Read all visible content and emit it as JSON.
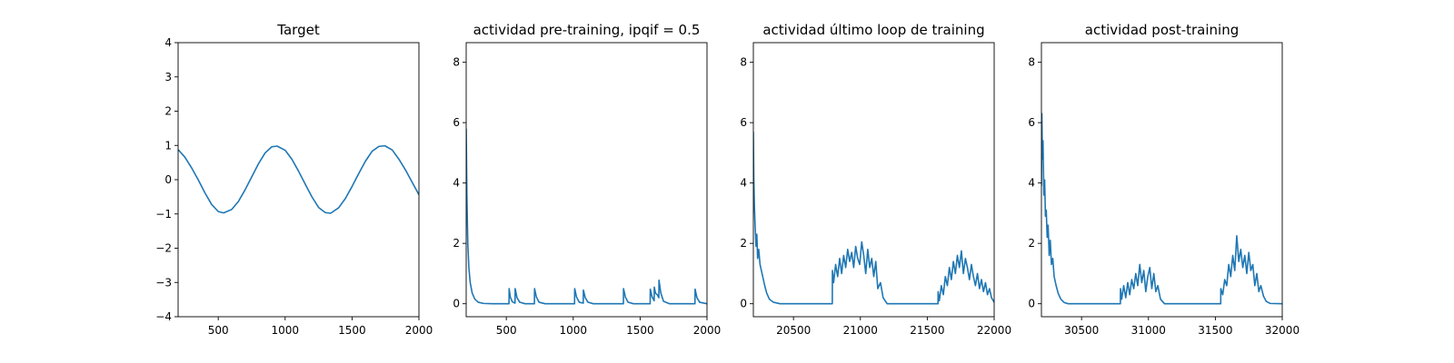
{
  "colors": {
    "series": "#1f77b4",
    "axes": "#000000",
    "background": "#ffffff"
  },
  "chart_data": [
    {
      "type": "line",
      "title": "Target",
      "xlim": [
        200,
        2000
      ],
      "ylim": [
        -4,
        4
      ],
      "xticks": [
        500,
        1000,
        1500,
        2000
      ],
      "yticks": [
        -4,
        -3,
        -2,
        -1,
        0,
        1,
        2,
        3,
        4
      ],
      "grid": false,
      "legend": "none",
      "series": [
        {
          "x": [
            200,
            250,
            300,
            350,
            400,
            450,
            500,
            540,
            600,
            650,
            700,
            750,
            800,
            850,
            900,
            940,
            1000,
            1050,
            1100,
            1150,
            1200,
            1250,
            1300,
            1340,
            1400,
            1450,
            1500,
            1550,
            1600,
            1650,
            1700,
            1745,
            1800,
            1850,
            1900,
            1950,
            2000
          ],
          "y": [
            0.88,
            0.66,
            0.35,
            0.0,
            -0.38,
            -0.72,
            -0.93,
            -0.97,
            -0.87,
            -0.64,
            -0.3,
            0.08,
            0.46,
            0.78,
            0.96,
            0.98,
            0.86,
            0.6,
            0.25,
            -0.13,
            -0.5,
            -0.81,
            -0.96,
            -0.98,
            -0.82,
            -0.55,
            -0.2,
            0.18,
            0.54,
            0.83,
            0.97,
            0.99,
            0.87,
            0.6,
            0.28,
            -0.08,
            -0.44
          ]
        }
      ]
    },
    {
      "type": "line",
      "title": "actividad pre-training, ipqif = 0.5",
      "xlim": [
        200,
        2000
      ],
      "ylim": [
        -0.43,
        8.65
      ],
      "xticks": [
        500,
        1000,
        1500,
        2000
      ],
      "yticks": [
        0,
        2,
        4,
        6,
        8
      ],
      "grid": false,
      "legend": "none",
      "series": [
        {
          "x": [
            200,
            205,
            212,
            220,
            230,
            245,
            265,
            290,
            330,
            400,
            520,
            521,
            530,
            545,
            565,
            566,
            580,
            600,
            640,
            710,
            711,
            725,
            745,
            790,
            1010,
            1011,
            1025,
            1045,
            1075,
            1076,
            1090,
            1110,
            1150,
            1375,
            1376,
            1390,
            1410,
            1450,
            1575,
            1576,
            1590,
            1605,
            1606,
            1615,
            1628,
            1640,
            1641,
            1655,
            1675,
            1720,
            1910,
            1911,
            1925,
            1945,
            2000
          ],
          "y": [
            5.8,
            3.6,
            2.0,
            1.2,
            0.7,
            0.35,
            0.15,
            0.05,
            0.01,
            0.0,
            0.0,
            0.5,
            0.22,
            0.06,
            0.02,
            0.5,
            0.2,
            0.05,
            0.0,
            0.0,
            0.5,
            0.22,
            0.05,
            0.0,
            0.0,
            0.5,
            0.22,
            0.05,
            0.02,
            0.45,
            0.2,
            0.05,
            0.0,
            0.0,
            0.5,
            0.22,
            0.05,
            0.0,
            0.0,
            0.48,
            0.22,
            0.1,
            0.55,
            0.35,
            0.3,
            0.2,
            0.78,
            0.35,
            0.08,
            0.0,
            0.0,
            0.48,
            0.2,
            0.05,
            0.0
          ]
        }
      ]
    },
    {
      "type": "line",
      "title": "actividad último loop de training",
      "xlim": [
        20200,
        22000
      ],
      "ylim": [
        -0.43,
        8.65
      ],
      "xticks": [
        20500,
        21000,
        21500,
        22000
      ],
      "yticks": [
        0,
        2,
        4,
        6,
        8
      ],
      "grid": false,
      "legend": "none",
      "series": [
        {
          "x": [
            20200,
            20203,
            20208,
            20214,
            20220,
            20226,
            20232,
            20240,
            20250,
            20260,
            20270,
            20285,
            20300,
            20320,
            20350,
            20400,
            20790,
            20791,
            20800,
            20815,
            20830,
            20845,
            20860,
            20875,
            20890,
            20905,
            20920,
            20935,
            20950,
            20965,
            20980,
            20995,
            21010,
            21025,
            21040,
            21055,
            21070,
            21085,
            21100,
            21115,
            21130,
            21150,
            21170,
            21200,
            21580,
            21581,
            21590,
            21605,
            21620,
            21635,
            21650,
            21665,
            21680,
            21695,
            21710,
            21725,
            21740,
            21755,
            21770,
            21785,
            21800,
            21815,
            21830,
            21845,
            21860,
            21875,
            21890,
            21905,
            21920,
            21935,
            21950,
            21965,
            21980,
            22000
          ],
          "y": [
            5.7,
            4.2,
            3.2,
            2.5,
            1.9,
            2.3,
            1.5,
            1.8,
            1.3,
            1.1,
            0.9,
            0.6,
            0.35,
            0.15,
            0.05,
            0.0,
            0.0,
            1.1,
            0.7,
            1.3,
            0.9,
            1.5,
            1.0,
            1.6,
            1.2,
            1.8,
            1.4,
            1.7,
            1.2,
            1.9,
            1.5,
            1.3,
            2.05,
            1.6,
            1.0,
            1.8,
            1.2,
            1.5,
            0.9,
            1.4,
            0.5,
            0.7,
            0.2,
            0.0,
            0.0,
            0.4,
            0.1,
            0.6,
            0.3,
            0.9,
            0.6,
            1.2,
            0.8,
            1.4,
            1.0,
            1.6,
            1.2,
            1.75,
            1.0,
            1.5,
            1.2,
            0.8,
            1.3,
            0.9,
            0.6,
            1.0,
            0.5,
            0.8,
            0.4,
            0.7,
            0.3,
            0.5,
            0.2,
            0.05
          ]
        }
      ]
    },
    {
      "type": "line",
      "title": "actividad post-training",
      "xlim": [
        30200,
        32000
      ],
      "ylim": [
        -0.43,
        8.65
      ],
      "xticks": [
        30500,
        31000,
        31500,
        32000
      ],
      "yticks": [
        0,
        2,
        4,
        6,
        8
      ],
      "grid": false,
      "legend": "none",
      "series": [
        {
          "x": [
            30200,
            30203,
            30207,
            30212,
            30218,
            30224,
            30230,
            30236,
            30243,
            30250,
            30258,
            30266,
            30275,
            30285,
            30295,
            30310,
            30325,
            30345,
            30370,
            30400,
            30790,
            30791,
            30800,
            30815,
            30830,
            30845,
            30860,
            30875,
            30890,
            30905,
            30920,
            30935,
            30950,
            30965,
            30980,
            30995,
            31010,
            31025,
            31040,
            31055,
            31070,
            31090,
            31120,
            31540,
            31541,
            31555,
            31570,
            31585,
            31600,
            31615,
            31630,
            31645,
            31660,
            31675,
            31690,
            31705,
            31720,
            31735,
            31750,
            31765,
            31780,
            31795,
            31810,
            31825,
            31840,
            31860,
            31880,
            31910,
            32000
          ],
          "y": [
            3.9,
            6.3,
            4.8,
            5.4,
            3.6,
            4.1,
            2.9,
            3.1,
            2.2,
            2.6,
            1.6,
            2.1,
            1.3,
            1.5,
            0.9,
            0.6,
            0.35,
            0.15,
            0.04,
            0.0,
            0.0,
            0.5,
            0.15,
            0.6,
            0.2,
            0.7,
            0.3,
            0.8,
            0.5,
            1.0,
            0.6,
            1.3,
            0.7,
            1.1,
            0.4,
            0.9,
            1.2,
            0.5,
            1.0,
            0.4,
            0.6,
            0.15,
            0.0,
            0.0,
            0.5,
            0.3,
            0.8,
            0.6,
            1.3,
            0.9,
            1.6,
            1.1,
            2.25,
            1.4,
            1.8,
            1.2,
            1.6,
            1.0,
            1.7,
            1.1,
            1.3,
            0.6,
            1.0,
            0.4,
            0.6,
            0.25,
            0.08,
            0.01,
            0.0
          ]
        }
      ]
    }
  ]
}
